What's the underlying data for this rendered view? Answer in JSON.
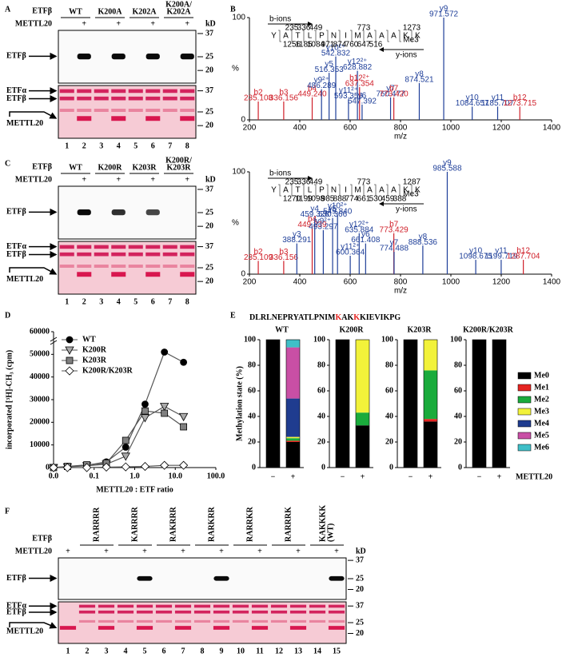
{
  "panel_labels": [
    "A",
    "B",
    "C",
    "D",
    "E",
    "F"
  ],
  "gels": [
    {
      "row_labels": [
        "ETFβ",
        "METTL20"
      ],
      "lanes": [
        [
          "WT"
        ],
        [
          "K200A"
        ],
        [
          "K202A"
        ],
        [
          "K200A/",
          "K202A"
        ]
      ],
      "plus": [
        "+",
        "+",
        "+",
        "+"
      ],
      "band_label": "ETFβ",
      "ponceau_labels": [
        "ETFα",
        "ETFβ",
        "METTL20"
      ],
      "unit": "kD",
      "markers": [
        37,
        25,
        20
      ],
      "ponceau_markers": [
        37,
        25,
        20
      ],
      "lane_numbers": [
        1,
        2,
        3,
        4,
        5,
        6,
        7,
        8
      ]
    },
    {
      "row_labels": [
        "ETFβ",
        "METTL20"
      ],
      "lanes": [
        [
          "WT"
        ],
        [
          "K200R"
        ],
        [
          "K203R"
        ],
        [
          "K200R/",
          "K203R"
        ]
      ],
      "plus": [
        "+",
        "+",
        "+",
        "+"
      ],
      "band_label": "ETFβ",
      "ponceau_labels": [
        "ETFα",
        "ETFβ",
        "METTL20"
      ],
      "unit": "kD",
      "markers": [
        37,
        25,
        20
      ],
      "ponceau_markers": [
        37,
        25,
        20
      ],
      "lane_numbers": [
        1,
        2,
        3,
        4,
        5,
        6,
        7,
        8
      ]
    },
    {
      "row_labels": [
        "ETFβ",
        "METTL20"
      ],
      "lanes": [
        [
          "RARRRR"
        ],
        [
          "KARRRR"
        ],
        [
          "RAKRRR"
        ],
        [
          "RARKRR"
        ],
        [
          "RARRKR"
        ],
        [
          "RARRRK"
        ],
        [
          "KAKKKK",
          "(WT)"
        ]
      ],
      "plus": [
        "+",
        "+",
        "+",
        "+",
        "+",
        "+",
        "+",
        "+"
      ],
      "band_label": "ETFβ",
      "ponceau_labels": [
        "ETFα",
        "ETFβ",
        "METTL20"
      ],
      "unit": "kD",
      "markers": [
        37,
        25,
        20
      ],
      "ponceau_markers": [
        37,
        25,
        20
      ],
      "lane_numbers": [
        1,
        2,
        3,
        4,
        5,
        6,
        7,
        8,
        9,
        10,
        11,
        12,
        13,
        14,
        15
      ]
    }
  ],
  "chart_data": [
    {
      "type": "spectrum",
      "xlabel": "m/z",
      "ylabel": "%",
      "xlim": [
        200,
        1400
      ],
      "xticks": [
        200,
        400,
        600,
        800,
        1000,
        1200,
        1400
      ],
      "ylim": [
        0,
        100
      ],
      "yticks": [
        0,
        100
      ],
      "peak_labels": [
        "b2",
        "b3",
        "b4",
        "y9²⁺",
        "y5",
        "y11²⁺",
        "y10²⁺",
        "y12²⁺",
        "b12²⁺",
        "y6",
        "y7",
        "b7",
        "y8",
        "y9",
        "y10",
        "y11",
        "b12"
      ],
      "x": [
        235.108,
        336.156,
        449.24,
        486.289,
        516.353,
        593.356,
        542.832,
        628.882,
        637.354,
        647.392,
        760.477,
        773.42,
        874.521,
        971.572,
        1084.657,
        1185.707,
        1273.715
      ],
      "x_labels": [
        "235.108",
        "336.156",
        "449.240",
        "486.289",
        "516.353",
        "593.356",
        "542.832",
        "628.882",
        "637.354",
        "647.392",
        "760.477",
        "773.420",
        "874.521",
        "971.572",
        "1084.657",
        "1185.707",
        "1273.715"
      ],
      "values": [
        18,
        18,
        22,
        30,
        46,
        20,
        62,
        48,
        32,
        15,
        22,
        22,
        36,
        100,
        13,
        13,
        13
      ],
      "peptide": {
        "b_label": "b-ions",
        "y_label": "y-ions",
        "sequence": [
          "Y",
          "A",
          "T",
          "L",
          "P",
          "N",
          "I",
          "M",
          "A",
          "A",
          "A",
          "K",
          "K"
        ],
        "modification": "Me3",
        "b_numbers": [
          235,
          336,
          449,
          773,
          1273
        ],
        "y_numbers": [
          1256,
          1185,
          1084,
          971,
          874,
          760,
          647,
          516
        ]
      }
    },
    {
      "type": "spectrum",
      "xlabel": "m/z",
      "ylabel": "%",
      "xlim": [
        200,
        1400
      ],
      "xticks": [
        200,
        400,
        600,
        800,
        1000,
        1200,
        1400
      ],
      "ylim": [
        0,
        100
      ],
      "yticks": [
        0,
        100
      ],
      "peak_labels": [
        "b2",
        "b3",
        "y3",
        "b4",
        "y4",
        "y9²⁺",
        "y5",
        "y10²⁺",
        "y11²⁺",
        "y12²⁺",
        "y6",
        "b7",
        "y7",
        "y8",
        "y9",
        "y10",
        "y11",
        "b12"
      ],
      "x": [
        235.109,
        336.156,
        388.291,
        449.239,
        459.328,
        493.297,
        530.366,
        549.84,
        600.364,
        635.884,
        661.408,
        773.429,
        774.488,
        888.536,
        985.588,
        1098.675,
        1199.719,
        1287.704
      ],
      "x_labels": [
        "235.109",
        "336.156",
        "388.291",
        "449.239",
        "459.328",
        "493.297",
        "530.366",
        "549.840",
        "600.364",
        "635.884",
        "661.408",
        "773.429",
        "774.488",
        "888.536",
        "985.588",
        "1098.675",
        "1199.719",
        "1287.704"
      ],
      "values": [
        13,
        13,
        30,
        45,
        55,
        43,
        55,
        58,
        18,
        40,
        30,
        40,
        22,
        28,
        100,
        14,
        14,
        14
      ],
      "peptide": {
        "b_label": "b-ions",
        "y_label": "y-ions",
        "sequence": [
          "Y",
          "A",
          "T",
          "L",
          "P",
          "N",
          "I",
          "M",
          "A",
          "A",
          "A",
          "K",
          "K"
        ],
        "modification": "Me3",
        "b_numbers": [
          235,
          336,
          449,
          773,
          1287
        ],
        "y_numbers": [
          1270,
          1199,
          1098,
          985,
          888,
          774,
          661,
          530,
          459,
          388
        ]
      }
    },
    {
      "type": "line",
      "xlabel": "METTL20 : ETF ratio",
      "ylabel": "incorporated [³H]-CH₃ (cpm)",
      "xscale": "log",
      "xlim": [
        0.01,
        100
      ],
      "xticks": [
        {
          "value": 0.01,
          "label": "0.0"
        },
        0.1,
        {
          "value": 1,
          "label": "1.0"
        },
        {
          "value": 10,
          "label": "10.0"
        },
        {
          "value": 100,
          "label": "100.0"
        }
      ],
      "ylim": [
        0,
        60000
      ],
      "yticks": [
        0,
        10000,
        20000,
        30000,
        40000,
        50000,
        60000
      ],
      "legend": "top-left",
      "x": [
        0.01,
        0.022,
        0.066,
        0.2,
        0.6,
        1.8,
        5.4,
        16
      ],
      "series": [
        {
          "name": "WT",
          "color": "#000000",
          "marker": "circle",
          "values": [
            0,
            500,
            1000,
            2500,
            9000,
            28000,
            51000,
            46500
          ]
        },
        {
          "name": "K200R",
          "color": "#aaaaaa",
          "marker": "triangle-down",
          "values": [
            0,
            300,
            800,
            1500,
            5000,
            22000,
            27000,
            22500
          ]
        },
        {
          "name": "K203R",
          "color": "#808080",
          "marker": "square",
          "values": [
            0,
            500,
            1200,
            2000,
            12000,
            25000,
            24000,
            18000
          ]
        },
        {
          "name": "K200R/K203R",
          "color": "#ffffff",
          "marker": "diamond",
          "values": [
            0,
            0,
            0,
            200,
            300,
            500,
            1000,
            1000
          ]
        }
      ]
    },
    {
      "type": "stacked-bar",
      "sequence": [
        "DLRLNEPRYATLPNIM",
        "K",
        "AK",
        "K",
        "KIEVIKPG"
      ],
      "ylabel": "Methylation state (%)",
      "xlabel": "METTL20",
      "facets": [
        "WT",
        "K200R",
        "K203R",
        "K200R/K203R"
      ],
      "categories": [
        "−",
        "+",
        "−",
        "+",
        "−",
        "+",
        "−",
        "+"
      ],
      "ylim": [
        0,
        100
      ],
      "yticks": [
        0,
        20,
        40,
        60,
        80,
        100
      ],
      "series": [
        {
          "name": "Me0",
          "color": "#000000",
          "values": [
            100,
            20,
            100,
            33,
            100,
            36,
            100,
            100
          ]
        },
        {
          "name": "Me1",
          "color": "#e52421",
          "values": [
            0,
            1,
            0,
            0,
            0,
            2,
            0,
            0
          ]
        },
        {
          "name": "Me2",
          "color": "#1aab3c",
          "values": [
            0,
            2,
            0,
            10,
            0,
            38,
            0,
            0
          ]
        },
        {
          "name": "Me3",
          "color": "#f2f23a",
          "values": [
            0,
            1,
            0,
            57,
            0,
            24,
            0,
            0
          ]
        },
        {
          "name": "Me4",
          "color": "#1f3c8f",
          "values": [
            0,
            30,
            0,
            0,
            0,
            0,
            0,
            0
          ]
        },
        {
          "name": "Me5",
          "color": "#c94fa5",
          "values": [
            0,
            40,
            0,
            0,
            0,
            0,
            0,
            0
          ]
        },
        {
          "name": "Me6",
          "color": "#3fbfc8",
          "values": [
            0,
            6,
            0,
            0,
            0,
            0,
            0,
            0
          ]
        }
      ]
    }
  ]
}
